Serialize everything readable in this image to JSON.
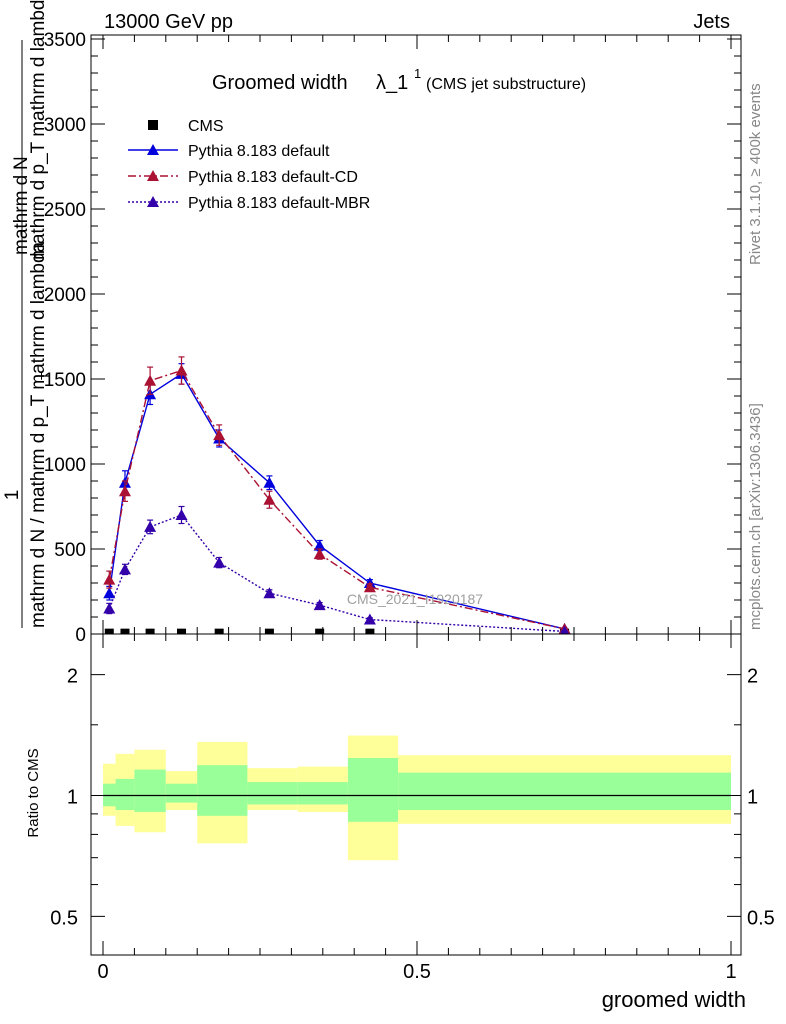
{
  "header": {
    "left": "13000 GeV pp",
    "right": "Jets"
  },
  "side": {
    "rivet": "Rivet 3.1.10, ≥ 400k events",
    "mcplots": "mcplots.cern.ch [arXiv:1306.3436]"
  },
  "watermark": "CMS_2021_I1920187",
  "colors": {
    "default": "#0000dd",
    "cd": "#aa1133",
    "mbr": "#3300aa",
    "cms": "#000000",
    "band_outer": "#ffff99",
    "band_inner": "#99ff99"
  },
  "chart_data": [
    {
      "type": "line",
      "title_main": "Groomed width",
      "title_lambda": "λ_1",
      "title_sup": "1",
      "title_sub": "(CMS jet substructure)",
      "ylabel_num": "1",
      "ylabel_den_top": "mathrm d N / mathrm d p_T mathrm d lambda",
      "ylabel_den_bottom_T": "T",
      "ylabel_rhs_top": "mathrm d",
      "ylabel_rhs_N": "N",
      "ylabel_rhs_bot": "mathrm d p_T mathrm d lambda",
      "xlim": [
        0,
        1
      ],
      "ylim": [
        0,
        3500
      ],
      "yticks": [
        0,
        500,
        1000,
        1500,
        2000,
        2500,
        3000,
        3500
      ],
      "ytick_labels": [
        "0",
        "500",
        "1000",
        "1500",
        "2000",
        "2500",
        "3000",
        "3500"
      ],
      "x": [
        0.01,
        0.035,
        0.075,
        0.125,
        0.185,
        0.265,
        0.345,
        0.425,
        0.735
      ],
      "series": [
        {
          "name": "CMS",
          "values": [
            5,
            5,
            5,
            5,
            5,
            5,
            5,
            5,
            5
          ],
          "errors": [
            0,
            0,
            0,
            0,
            0,
            0,
            0,
            0,
            0
          ],
          "marker": "square"
        },
        {
          "name": "Pythia 8.183 default",
          "values": [
            240,
            890,
            1410,
            1530,
            1150,
            890,
            520,
            300,
            30
          ],
          "errors": [
            40,
            70,
            60,
            60,
            50,
            40,
            30,
            20,
            5
          ],
          "marker": "triangle",
          "dash": ""
        },
        {
          "name": "Pythia 8.183 default-CD",
          "values": [
            320,
            840,
            1490,
            1550,
            1170,
            790,
            470,
            275,
            30
          ],
          "errors": [
            50,
            60,
            80,
            80,
            60,
            50,
            30,
            20,
            5
          ],
          "marker": "triangle",
          "dash": "8,3,2,3"
        },
        {
          "name": "Pythia 8.183 default-MBR",
          "values": [
            150,
            380,
            630,
            700,
            420,
            240,
            170,
            85,
            15
          ],
          "errors": [
            30,
            30,
            40,
            50,
            30,
            20,
            15,
            10,
            3
          ],
          "marker": "triangle",
          "dash": "2,2"
        }
      ]
    },
    {
      "type": "area",
      "ylabel": "Ratio to CMS",
      "xlabel": "groomed width",
      "xlim": [
        0,
        1
      ],
      "ylim": [
        0.4,
        2.3
      ],
      "yticks": [
        0.5,
        1,
        2
      ],
      "ytick_labels": [
        "0.5",
        "1",
        "2"
      ],
      "xticks": [
        0,
        0.5,
        1
      ],
      "xtick_labels": [
        "0",
        "0.5",
        "1"
      ],
      "bins": [
        {
          "x0": 0.0,
          "x1": 0.02,
          "outer": [
            0.89,
            1.2
          ],
          "inner": [
            0.94,
            1.07
          ]
        },
        {
          "x0": 0.02,
          "x1": 0.05,
          "outer": [
            0.84,
            1.27
          ],
          "inner": [
            0.92,
            1.1
          ]
        },
        {
          "x0": 0.05,
          "x1": 0.1,
          "outer": [
            0.81,
            1.3
          ],
          "inner": [
            0.91,
            1.16
          ]
        },
        {
          "x0": 0.1,
          "x1": 0.15,
          "outer": [
            0.92,
            1.15
          ],
          "inner": [
            0.96,
            1.07
          ]
        },
        {
          "x0": 0.15,
          "x1": 0.23,
          "outer": [
            0.76,
            1.36
          ],
          "inner": [
            0.89,
            1.19
          ]
        },
        {
          "x0": 0.23,
          "x1": 0.31,
          "outer": [
            0.92,
            1.17
          ],
          "inner": [
            0.95,
            1.08
          ]
        },
        {
          "x0": 0.31,
          "x1": 0.39,
          "outer": [
            0.91,
            1.18
          ],
          "inner": [
            0.95,
            1.08
          ]
        },
        {
          "x0": 0.39,
          "x1": 0.47,
          "outer": [
            0.69,
            1.41
          ],
          "inner": [
            0.86,
            1.24
          ]
        },
        {
          "x0": 0.47,
          "x1": 1.0,
          "outer": [
            0.85,
            1.26
          ],
          "inner": [
            0.92,
            1.14
          ]
        }
      ]
    }
  ]
}
